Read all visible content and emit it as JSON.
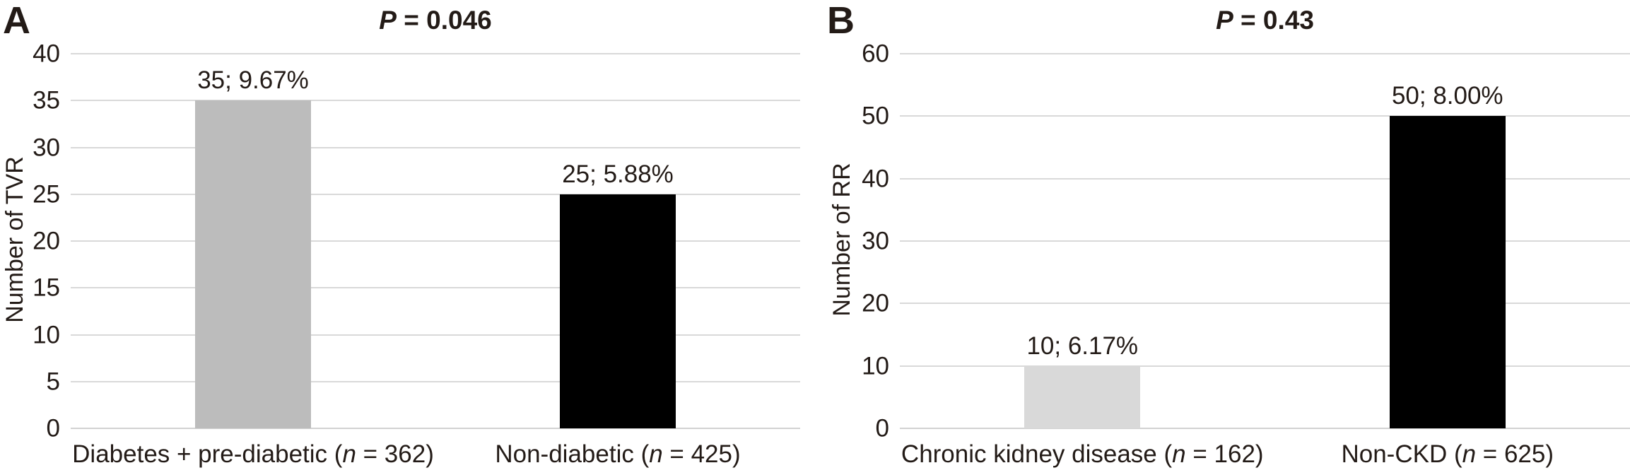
{
  "figure": {
    "background": "#ffffff",
    "text_color": "#231b17",
    "gridline_color": "#d9d9d9"
  },
  "chart_data": [
    {
      "type": "bar",
      "panel_label": "A",
      "title": "P = 0.046",
      "p_value": "0.046",
      "ylabel": "Number of TVR",
      "xlabel": "",
      "ylim": [
        0,
        40
      ],
      "yticks": [
        0,
        5,
        10,
        15,
        20,
        25,
        30,
        35,
        40
      ],
      "grid": true,
      "legend": false,
      "categories": [
        "Diabetes + pre-diabetic (n = 362)",
        "Non-diabetic (n = 425)"
      ],
      "values": [
        35,
        25
      ],
      "percent_values": [
        "9.67%",
        "5.88%"
      ],
      "bar_labels": [
        "35; 9.67%",
        "25; 5.88%"
      ],
      "bar_colors": [
        "#bcbcbc",
        "#000000"
      ]
    },
    {
      "type": "bar",
      "panel_label": "B",
      "title": "P = 0.43",
      "p_value": "0.43",
      "ylabel": "Number of RR",
      "xlabel": "",
      "ylim": [
        0,
        60
      ],
      "yticks": [
        0,
        10,
        20,
        30,
        40,
        50,
        60
      ],
      "grid": true,
      "legend": false,
      "categories": [
        "Chronic kidney disease (n = 162)",
        "Non-CKD (n = 625)"
      ],
      "values": [
        10,
        50
      ],
      "percent_values": [
        "6.17%",
        "8.00%"
      ],
      "bar_labels": [
        "10; 6.17%",
        "50; 8.00%"
      ],
      "bar_colors": [
        "#d9d9d9",
        "#000000"
      ]
    }
  ]
}
